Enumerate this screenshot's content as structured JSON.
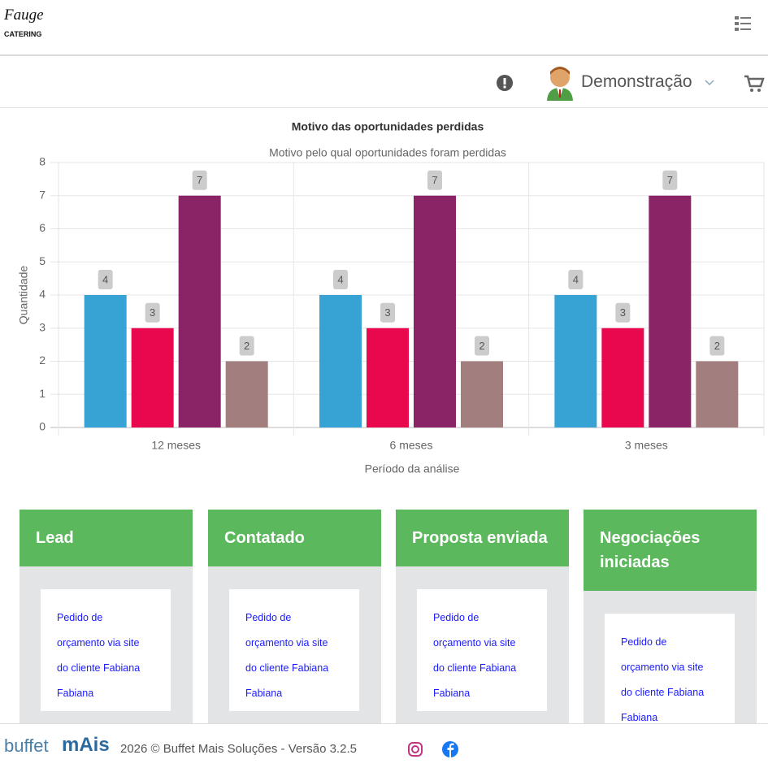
{
  "header": {
    "logo_script": "Fauge",
    "logo_sub": "CATERING",
    "user": "Demonstração"
  },
  "chart_data": {
    "type": "bar",
    "title": "Motivo das oportunidades perdidas",
    "subtitle": "Motivo pelo qual oportunidades foram perdidas",
    "y_label": "Quantidade",
    "x_label": "Período da análise",
    "categories": [
      "12 meses",
      "6 meses",
      "3 meses"
    ],
    "series": [
      {
        "color": "#36a3d4",
        "values": [
          4,
          4,
          4
        ]
      },
      {
        "color": "#e9074e",
        "values": [
          3,
          3,
          3
        ]
      },
      {
        "color": "#8b2367",
        "values": [
          7,
          7,
          7
        ]
      },
      {
        "color": "#a27e7f",
        "values": [
          2,
          2,
          2
        ]
      }
    ],
    "ylim": [
      0,
      8
    ],
    "yticks": [
      0,
      1,
      2,
      3,
      4,
      5,
      6,
      7,
      8
    ],
    "grid": true
  },
  "kanban": {
    "columns": [
      {
        "title": "Lead",
        "cards": [
          "Pedido de orçamento via site do cliente Fabiana Fabiana"
        ]
      },
      {
        "title": "Contatado",
        "cards": [
          "Pedido de orçamento via site do cliente Fabiana Fabiana"
        ]
      },
      {
        "title": "Proposta enviada",
        "cards": [
          "Pedido de orçamento via site do cliente Fabiana Fabiana"
        ]
      },
      {
        "title": "Negociações iniciadas",
        "cards": [
          "Pedido de orçamento via site do cliente Fabiana Fabiana"
        ]
      }
    ]
  },
  "footer": {
    "brand_name": "buffet",
    "brand_mark": "mAis",
    "copyright": "2026 © Buffet Mais Soluções - Versão 3.2.5"
  }
}
